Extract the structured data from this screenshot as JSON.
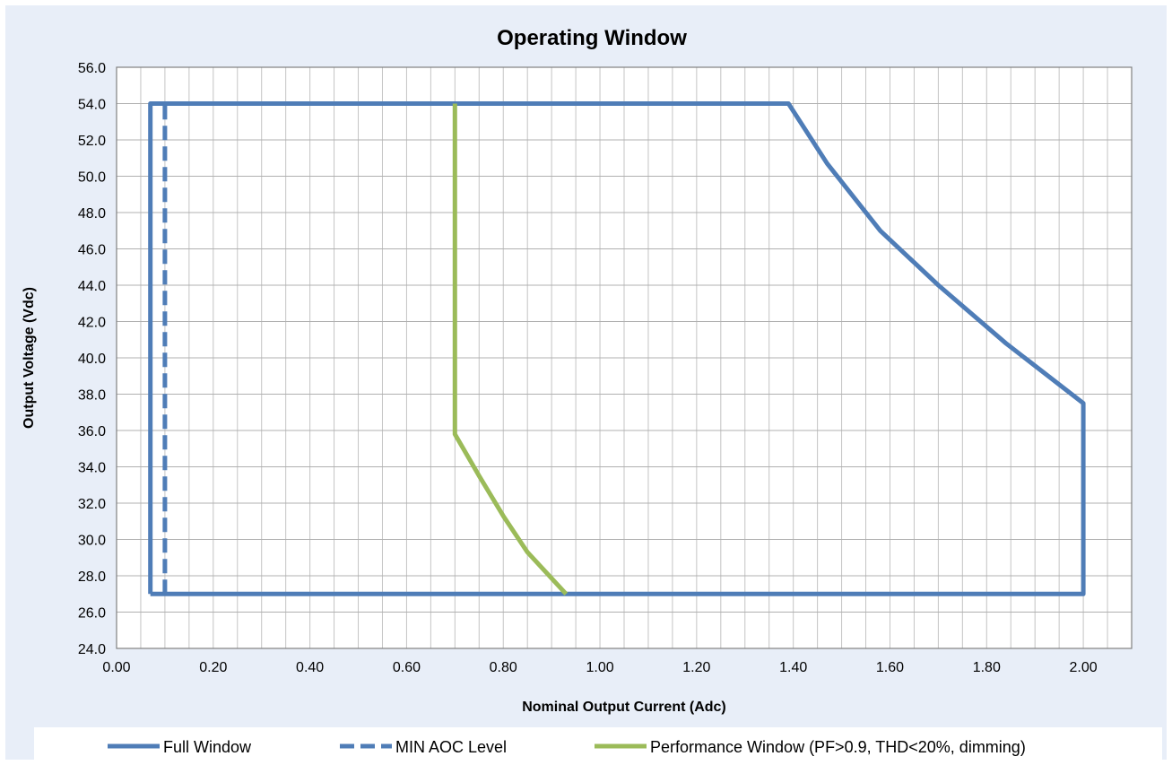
{
  "chart_data": {
    "type": "line",
    "title": "Operating Window",
    "xlabel": "Nominal Output Current (Adc)",
    "ylabel": "Output Voltage (Vdc)",
    "xlim": [
      0,
      2.1
    ],
    "ylim": [
      24,
      56
    ],
    "xticks": [
      "0.00",
      "0.20",
      "0.40",
      "0.60",
      "0.80",
      "1.00",
      "1.20",
      "1.40",
      "1.60",
      "1.80",
      "2.00"
    ],
    "yticks": [
      "24.0",
      "26.0",
      "28.0",
      "30.0",
      "32.0",
      "34.0",
      "36.0",
      "38.0",
      "40.0",
      "42.0",
      "44.0",
      "46.0",
      "48.0",
      "50.0",
      "52.0",
      "54.0",
      "56.0"
    ],
    "grid": true,
    "legend_position": "bottom",
    "series": [
      {
        "name": "Full Window",
        "style": "solid",
        "color": "#4f7db7",
        "points": [
          [
            0.07,
            27
          ],
          [
            0.07,
            54
          ],
          [
            1.39,
            54
          ],
          [
            1.47,
            50.7
          ],
          [
            1.58,
            47
          ],
          [
            1.7,
            44
          ],
          [
            1.84,
            40.8
          ],
          [
            2.0,
            37.5
          ],
          [
            2.0,
            27
          ],
          [
            0.07,
            27
          ]
        ]
      },
      {
        "name": "MIN AOC Level",
        "style": "dashed",
        "color": "#4f7db7",
        "points": [
          [
            0.1,
            27
          ],
          [
            0.1,
            54
          ]
        ]
      },
      {
        "name": "Performance Window (PF>0.9, THD<20%, dimming)",
        "style": "solid",
        "color": "#9bbb59",
        "points": [
          [
            0.7,
            54
          ],
          [
            0.7,
            35.8
          ],
          [
            0.75,
            33.5
          ],
          [
            0.8,
            31.3
          ],
          [
            0.85,
            29.3
          ],
          [
            0.93,
            27
          ]
        ]
      }
    ]
  }
}
